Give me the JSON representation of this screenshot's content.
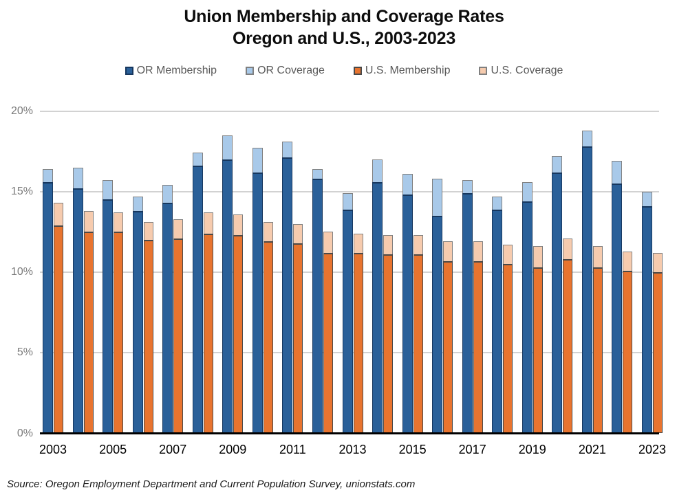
{
  "title": {
    "line1": "Union Membership and Coverage Rates",
    "line2": "Oregon and U.S., 2003-2023"
  },
  "source": "Source: Oregon Employment Department and Current Population Survey, unionstats.com",
  "axes": {
    "y_ticks": [
      {
        "value": 0,
        "label": "0%"
      },
      {
        "value": 5,
        "label": "5%"
      },
      {
        "value": 10,
        "label": "10%"
      },
      {
        "value": 15,
        "label": "15%"
      },
      {
        "value": 20,
        "label": "20%"
      }
    ],
    "x_tick_labels": [
      "2003",
      "2005",
      "2007",
      "2009",
      "2011",
      "2013",
      "2015",
      "2017",
      "2019",
      "2021",
      "2023"
    ],
    "ylim": [
      0,
      20
    ]
  },
  "chart_data": {
    "type": "bar",
    "title": "Union Membership and Coverage Rates, Oregon and U.S., 2003-2023",
    "note": "Two stacked columns per year: Oregon (blue) and U.S. (orange). Dark segment top = membership rate; light segment top = coverage rate.",
    "categories": [
      2003,
      2004,
      2005,
      2006,
      2007,
      2008,
      2009,
      2010,
      2011,
      2012,
      2013,
      2014,
      2015,
      2016,
      2017,
      2018,
      2019,
      2020,
      2021,
      2022,
      2023
    ],
    "series": [
      {
        "name": "OR Membership",
        "fill": "#2a6099",
        "border": "#17375e",
        "values": [
          15.6,
          15.2,
          14.5,
          13.8,
          14.3,
          16.6,
          17.0,
          16.2,
          17.1,
          15.8,
          13.9,
          15.6,
          14.8,
          13.5,
          14.9,
          13.9,
          14.4,
          16.2,
          17.8,
          15.5,
          14.1
        ]
      },
      {
        "name": "OR Coverage",
        "fill": "#a8c9e9",
        "border": "#808080",
        "values": [
          16.4,
          16.5,
          15.7,
          14.7,
          15.4,
          17.4,
          18.5,
          17.7,
          18.1,
          16.4,
          14.9,
          17.0,
          16.1,
          15.8,
          15.7,
          14.7,
          15.6,
          17.2,
          18.8,
          16.9,
          15.0
        ]
      },
      {
        "name": "U.S. Membership",
        "fill": "#e8742f",
        "border": "#494949",
        "values": [
          12.9,
          12.5,
          12.5,
          12.0,
          12.1,
          12.4,
          12.3,
          11.9,
          11.8,
          11.2,
          11.2,
          11.1,
          11.1,
          10.7,
          10.7,
          10.5,
          10.3,
          10.8,
          10.3,
          10.1,
          10.0
        ]
      },
      {
        "name": "U.S. Coverage",
        "fill": "#f6cbae",
        "border": "#808080",
        "values": [
          14.3,
          13.8,
          13.7,
          13.1,
          13.3,
          13.7,
          13.6,
          13.1,
          13.0,
          12.5,
          12.4,
          12.3,
          12.3,
          11.9,
          11.9,
          11.7,
          11.6,
          12.1,
          11.6,
          11.3,
          11.2
        ]
      }
    ],
    "ylim": [
      0,
      20
    ],
    "grid": true,
    "legend_position": "top"
  },
  "style": {
    "gridline_color": "#d2d2d2",
    "axis_line_color": "#000000",
    "y_tick_color": "#7a7a7a",
    "x_tick_color": "#000000",
    "legend_text_color": "#595959"
  }
}
